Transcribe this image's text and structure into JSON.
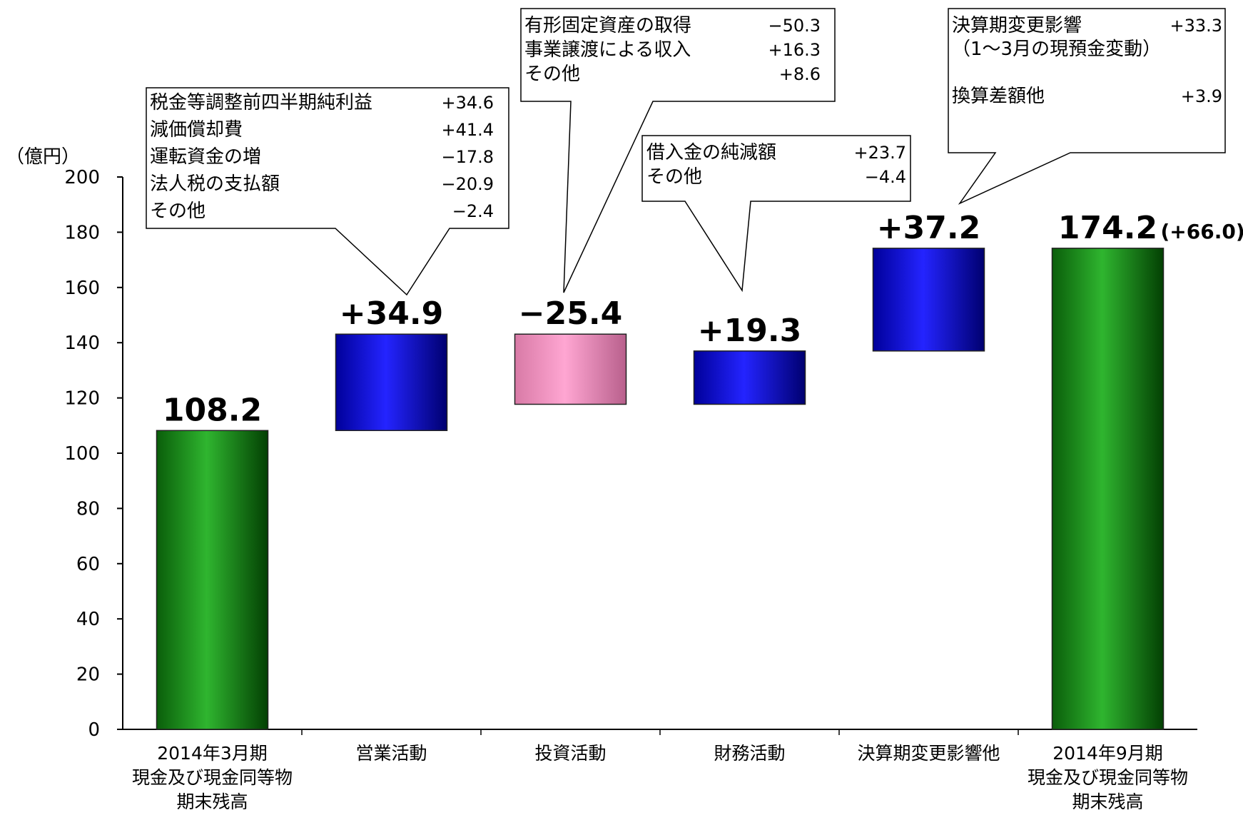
{
  "chart_data": {
    "type": "bar",
    "subtype": "waterfall",
    "unit_label": "（億円）",
    "ylim": [
      0,
      200
    ],
    "yticks": [
      0,
      20,
      40,
      60,
      80,
      100,
      120,
      140,
      160,
      180,
      200
    ],
    "grid": false,
    "categories": [
      [
        "2014年3月期",
        "現金及び現金同等物",
        "期末残高"
      ],
      [
        "営業活動"
      ],
      [
        "投資活動"
      ],
      [
        "財務活動"
      ],
      [
        "決算期変更影響他"
      ],
      [
        "2014年9月期",
        "現金及び現金同等物",
        "期末残高"
      ]
    ],
    "bars": [
      {
        "kind": "total",
        "start": 0,
        "end": 108.2,
        "label": "108.2",
        "color": "#0a7a0a"
      },
      {
        "kind": "increase",
        "start": 108.2,
        "end": 143.1,
        "label": "+34.9",
        "color": "#1a1aff"
      },
      {
        "kind": "decrease",
        "start": 143.1,
        "end": 117.7,
        "label": "−25.4",
        "color": "#f4a7c8"
      },
      {
        "kind": "increase",
        "start": 117.7,
        "end": 137.0,
        "label": "+19.3",
        "color": "#1a1aff"
      },
      {
        "kind": "increase",
        "start": 137.0,
        "end": 174.2,
        "label": "+37.2",
        "color": "#1a1aff"
      },
      {
        "kind": "total",
        "start": 0,
        "end": 174.2,
        "label": "174.2",
        "color": "#0a7a0a",
        "extra_label": "(+66.0)"
      }
    ],
    "callouts": [
      {
        "bar": 1,
        "items": [
          {
            "name": "税金等調整前四半期純利益",
            "value": "+34.6"
          },
          {
            "name": "減価償却費",
            "value": "+41.4"
          },
          {
            "name": "運転資金の増",
            "value": "−17.8"
          },
          {
            "name": "法人税の支払額",
            "value": "−20.9"
          },
          {
            "name": "その他",
            "value": "−2.4"
          }
        ]
      },
      {
        "bar": 2,
        "items": [
          {
            "name": "有形固定資産の取得",
            "value": "−50.3"
          },
          {
            "name": "事業譲渡による収入",
            "value": "+16.3"
          },
          {
            "name": "その他",
            "value": "+8.6"
          }
        ]
      },
      {
        "bar": 3,
        "items": [
          {
            "name": "借入金の純減額",
            "value": "+23.7"
          },
          {
            "name": "その他",
            "value": "−4.4"
          }
        ]
      },
      {
        "bar": 4,
        "items": [
          {
            "name": "決算期変更影響",
            "value": "+33.3"
          },
          {
            "name": "（1〜3月の現預金変動）",
            "value": ""
          },
          {
            "name": "",
            "value": ""
          },
          {
            "name": "換算差額他",
            "value": "+3.9"
          }
        ]
      }
    ]
  }
}
